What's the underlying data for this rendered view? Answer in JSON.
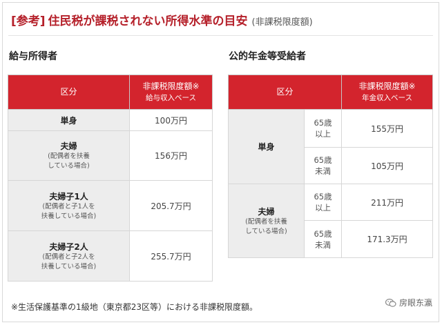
{
  "header": {
    "tag": "[参考]",
    "title": "住民税が課税されない所得水準の目安",
    "subtitle": "(非課税限度額)"
  },
  "salary": {
    "section_title": "給与所得者",
    "col_category": "区分",
    "col_limit": "非課税限度額※",
    "col_limit_sub": "給与収入ベース",
    "rows": [
      {
        "label": "単身",
        "note1": "",
        "note2": "",
        "value": "100万円"
      },
      {
        "label": "夫婦",
        "note1": "(配偶者を扶養",
        "note2": "している場合)",
        "value": "156万円"
      },
      {
        "label": "夫婦子1人",
        "note1": "(配偶者と子1人を",
        "note2": "扶養している場合)",
        "value": "205.7万円"
      },
      {
        "label": "夫婦子2人",
        "note1": "(配偶者と子2人を",
        "note2": "扶養している場合)",
        "value": "255.7万円"
      }
    ]
  },
  "pension": {
    "section_title": "公的年金等受給者",
    "col_category": "区分",
    "col_limit": "非課税限度額※",
    "col_limit_sub": "年金収入ベース",
    "groups": [
      {
        "label": "単身",
        "note1": "",
        "note2": "",
        "rows": [
          {
            "age1": "65歳",
            "age2": "以上",
            "value": "155万円"
          },
          {
            "age1": "65歳",
            "age2": "未満",
            "value": "105万円"
          }
        ]
      },
      {
        "label": "夫婦",
        "note1": "(配偶者を扶養",
        "note2": "している場合)",
        "rows": [
          {
            "age1": "65歳",
            "age2": "以上",
            "value": "211万円"
          },
          {
            "age1": "65歳",
            "age2": "未満",
            "value": "171.3万円"
          }
        ]
      }
    ]
  },
  "footnote": "※生活保護基準の1級地（東京都23区等）における非課税限度額。",
  "brand": {
    "name": "房眼东瀛",
    "icon": "wechat-icon"
  },
  "colors": {
    "accent": "#d3242d",
    "title": "#b5202a",
    "label_bg": "#ededed"
  }
}
